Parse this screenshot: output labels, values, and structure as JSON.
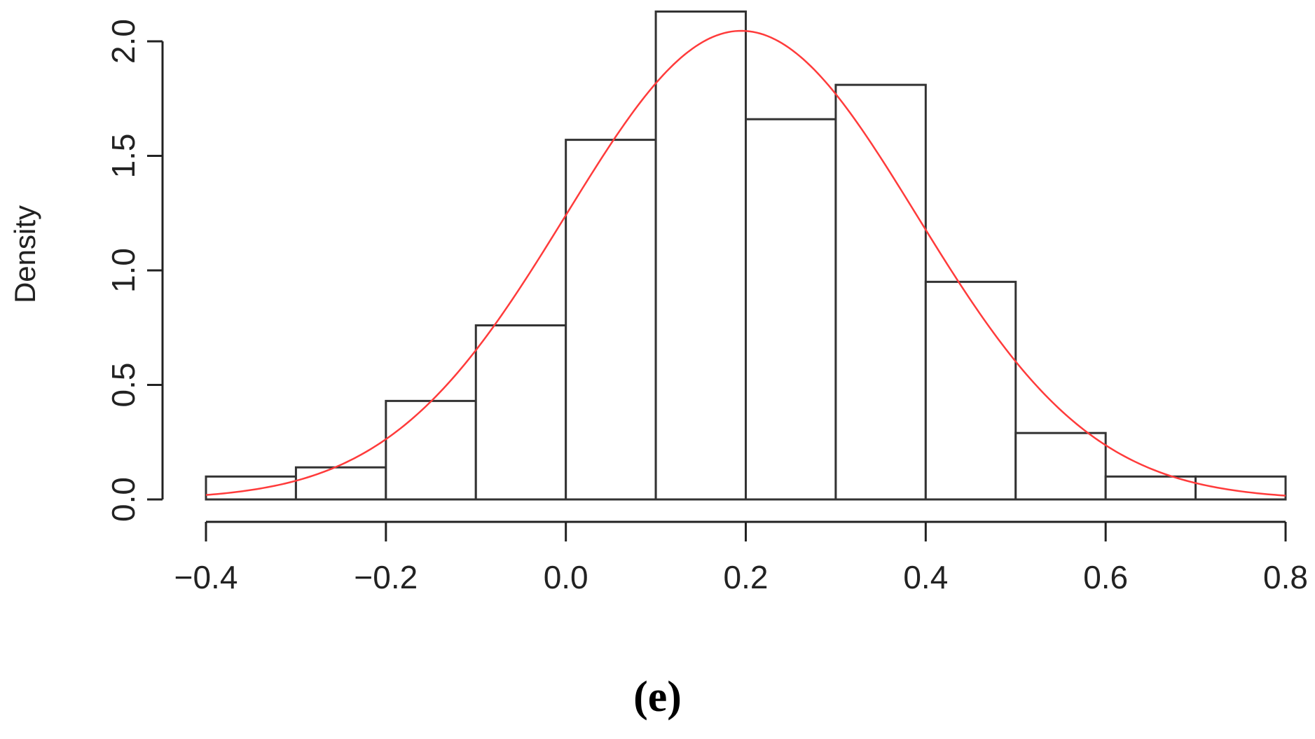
{
  "chart_data": {
    "type": "bar",
    "subtype": "histogram",
    "bins": [
      {
        "from": -0.4,
        "to": -0.3,
        "density": 0.1
      },
      {
        "from": -0.3,
        "to": -0.2,
        "density": 0.14
      },
      {
        "from": -0.2,
        "to": -0.1,
        "density": 0.43
      },
      {
        "from": -0.1,
        "to": 0.0,
        "density": 0.76
      },
      {
        "from": 0.0,
        "to": 0.1,
        "density": 1.57
      },
      {
        "from": 0.1,
        "to": 0.2,
        "density": 2.13
      },
      {
        "from": 0.2,
        "to": 0.3,
        "density": 1.66
      },
      {
        "from": 0.3,
        "to": 0.4,
        "density": 1.81
      },
      {
        "from": 0.4,
        "to": 0.5,
        "density": 0.95
      },
      {
        "from": 0.5,
        "to": 0.6,
        "density": 0.29
      },
      {
        "from": 0.6,
        "to": 0.7,
        "density": 0.1
      },
      {
        "from": 0.7,
        "to": 0.8,
        "density": 0.1
      }
    ],
    "density_curve": {
      "distribution": "normal",
      "mean": 0.195,
      "sd": 0.195,
      "color": "#ff3b3b"
    },
    "xlim": [
      -0.4,
      0.8
    ],
    "ylim": [
      0,
      2.0
    ],
    "x_ticks": [
      "−0.4",
      "−0.2",
      "0.0",
      "0.2",
      "0.4",
      "0.6",
      "0.8"
    ],
    "x_tick_values": [
      -0.4,
      -0.2,
      0.0,
      0.2,
      0.4,
      0.6,
      0.8
    ],
    "y_ticks": [
      "0.0",
      "0.5",
      "1.0",
      "1.5",
      "2.0"
    ],
    "y_tick_values": [
      0.0,
      0.5,
      1.0,
      1.5,
      2.0
    ],
    "xlabel": "",
    "ylabel": "Density",
    "title": "",
    "grid": false,
    "bar_fill": "#ffffff",
    "bar_edge": "#333333"
  },
  "panel_label": "(e)"
}
